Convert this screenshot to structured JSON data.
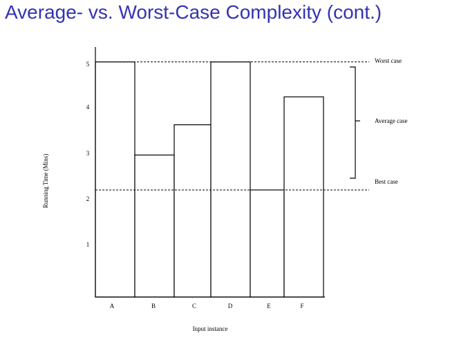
{
  "slide": {
    "title": "Average- vs. Worst-Case Complexity (cont.)"
  },
  "chart_data": {
    "type": "bar",
    "categories": [
      "A",
      "B",
      "C",
      "D",
      "E",
      "F"
    ],
    "values": [
      5.05,
      3.05,
      3.7,
      5.05,
      2.3,
      4.3
    ],
    "xlabel": "Input instance",
    "ylabel": "Running Time (Mins)",
    "yticks": [
      1,
      2,
      3,
      4,
      5
    ],
    "ylim": [
      0,
      5.3
    ],
    "grid": false,
    "legend": "none",
    "reference_lines": [
      {
        "label": "Worst case",
        "value": 5.05,
        "style": "dashed"
      },
      {
        "label": "Best case",
        "value": 2.3,
        "style": "dashed"
      }
    ],
    "range_annotation": {
      "label": "Average case",
      "from": 2.4,
      "to": 4.95
    },
    "colors": {
      "bar_fill": "#ffffff",
      "bar_stroke": "#000000",
      "title": "#3333b2"
    }
  }
}
